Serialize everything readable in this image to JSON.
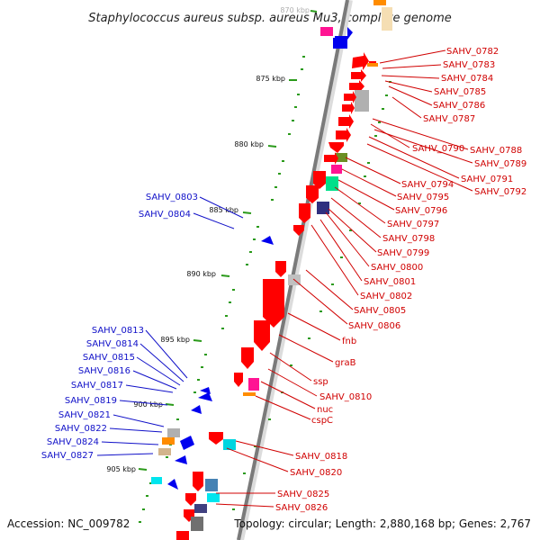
{
  "title": "Staphylococcus aureus subsp. aureus Mu3, complete genome",
  "footer": {
    "accession": "Accession: NC_009782",
    "stats": "Topology: circular; Length: 2,880,168 bp; Genes: 2,767"
  },
  "ruler": [
    {
      "label": "870 kbp",
      "faded": true
    },
    {
      "label": "875 kbp"
    },
    {
      "label": "880 kbp"
    },
    {
      "label": "885 kbp"
    },
    {
      "label": "890 kbp"
    },
    {
      "label": "895 kbp"
    },
    {
      "label": "900 kbp"
    },
    {
      "label": "905 kbp"
    }
  ],
  "right_labels": [
    "SAHV_0782",
    "SAHV_0783",
    "SAHV_0784",
    "SAHV_0785",
    "SAHV_0786",
    "SAHV_0787",
    "SAHV_0790",
    "SAHV_0788",
    "SAHV_0789",
    "SAHV_0791",
    "SAHV_0792",
    "SAHV_0794",
    "SAHV_0795",
    "SAHV_0796",
    "SAHV_0797",
    "SAHV_0798",
    "SAHV_0799",
    "SAHV_0800",
    "SAHV_0801",
    "SAHV_0802",
    "SAHV_0805",
    "SAHV_0806",
    "fnb",
    "graB",
    "ssp",
    "SAHV_0810",
    "nuc",
    "cspC",
    "SAHV_0818",
    "SAHV_0820",
    "SAHV_0825",
    "SAHV_0826"
  ],
  "left_labels": [
    "SAHV_0803",
    "SAHV_0804",
    "SAHV_0813",
    "SAHV_0814",
    "SAHV_0815",
    "SAHV_0816",
    "SAHV_0817",
    "SAHV_0819",
    "SAHV_0821",
    "SAHV_0822",
    "SAHV_0824",
    "SAHV_0827"
  ],
  "colors": {
    "forward_gene": "#ff0000",
    "reverse_gene": "#0000ee",
    "backbone": "#808080",
    "tick": "#2a9a1a",
    "right_label": "#d00000",
    "left_label": "#1010c8"
  }
}
